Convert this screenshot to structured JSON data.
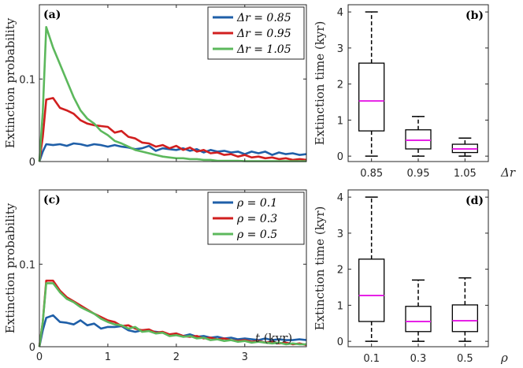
{
  "chart_data": [
    {
      "type": "line",
      "panel_label": "(a)",
      "xlabel": "",
      "ylabel": "Extinction probability",
      "xlim": [
        0,
        3.9
      ],
      "ylim": [
        0,
        0.19
      ],
      "xticks": [
        0,
        1,
        2,
        3
      ],
      "xtick_labels": [
        "",
        "",
        "",
        ""
      ],
      "yticks": [
        0,
        0.1
      ],
      "ytick_labels": [
        "0",
        "0.1"
      ],
      "legend_position": "top-right",
      "series": [
        {
          "name": "Δr = 0.85",
          "color": "#1f5fa8",
          "x": [
            0.05,
            0.1,
            0.2,
            0.3,
            0.4,
            0.5,
            0.6,
            0.7,
            0.8,
            0.9,
            1.0,
            1.1,
            1.2,
            1.3,
            1.4,
            1.5,
            1.6,
            1.7,
            1.8,
            1.9,
            2.0,
            2.1,
            2.2,
            2.3,
            2.4,
            2.5,
            2.6,
            2.7,
            2.8,
            2.9,
            3.0,
            3.1,
            3.2,
            3.3,
            3.4,
            3.5,
            3.6,
            3.7,
            3.8,
            3.9
          ],
          "y": [
            0.012,
            0.021,
            0.02,
            0.021,
            0.019,
            0.022,
            0.021,
            0.019,
            0.021,
            0.02,
            0.018,
            0.02,
            0.018,
            0.017,
            0.015,
            0.016,
            0.019,
            0.013,
            0.016,
            0.015,
            0.014,
            0.016,
            0.013,
            0.015,
            0.011,
            0.014,
            0.012,
            0.013,
            0.011,
            0.012,
            0.009,
            0.012,
            0.01,
            0.012,
            0.008,
            0.011,
            0.009,
            0.01,
            0.008,
            0.009
          ]
        },
        {
          "name": "Δr = 0.95",
          "color": "#d11f1f",
          "x": [
            0.05,
            0.1,
            0.2,
            0.3,
            0.4,
            0.5,
            0.6,
            0.7,
            0.8,
            0.9,
            1.0,
            1.1,
            1.2,
            1.3,
            1.4,
            1.5,
            1.6,
            1.7,
            1.8,
            1.9,
            2.0,
            2.1,
            2.2,
            2.3,
            2.4,
            2.5,
            2.6,
            2.7,
            2.8,
            2.9,
            3.0,
            3.1,
            3.2,
            3.3,
            3.4,
            3.5,
            3.6,
            3.7,
            3.8,
            3.9
          ],
          "y": [
            0.03,
            0.075,
            0.077,
            0.065,
            0.062,
            0.058,
            0.05,
            0.046,
            0.044,
            0.043,
            0.042,
            0.035,
            0.037,
            0.03,
            0.028,
            0.023,
            0.022,
            0.018,
            0.02,
            0.016,
            0.019,
            0.014,
            0.017,
            0.012,
            0.014,
            0.01,
            0.011,
            0.008,
            0.009,
            0.006,
            0.008,
            0.005,
            0.006,
            0.004,
            0.005,
            0.003,
            0.004,
            0.002,
            0.003,
            0.002
          ]
        },
        {
          "name": "Δr = 1.05",
          "color": "#5cb85c",
          "x": [
            0.05,
            0.1,
            0.2,
            0.3,
            0.4,
            0.5,
            0.6,
            0.7,
            0.8,
            0.9,
            1.0,
            1.1,
            1.2,
            1.3,
            1.4,
            1.5,
            1.6,
            1.7,
            1.8,
            1.9,
            2.0,
            2.1,
            2.2,
            2.3,
            2.4,
            2.5,
            2.6,
            2.7,
            2.8,
            2.9,
            3.0,
            3.1,
            3.2,
            3.3,
            3.4,
            3.5,
            3.6,
            3.7,
            3.8,
            3.9
          ],
          "y": [
            0.06,
            0.163,
            0.138,
            0.118,
            0.098,
            0.078,
            0.062,
            0.052,
            0.046,
            0.037,
            0.032,
            0.025,
            0.022,
            0.018,
            0.014,
            0.012,
            0.01,
            0.008,
            0.006,
            0.005,
            0.004,
            0.004,
            0.003,
            0.003,
            0.002,
            0.002,
            0.001,
            0.001,
            0.001,
            0.001,
            0.0005,
            0.0005,
            0.0005,
            0.0005,
            0.0005,
            0.0005,
            0.0005,
            0.0005,
            0.0005,
            0.0005
          ]
        }
      ]
    },
    {
      "type": "box",
      "panel_label": "(b)",
      "xlabel": "Δr",
      "ylabel": "Extinction time (kyr)",
      "ylim": [
        -0.15,
        4.2
      ],
      "yticks": [
        0,
        1,
        2,
        3,
        4
      ],
      "ytick_labels": [
        "0",
        "1",
        "2",
        "3",
        "4"
      ],
      "categories": [
        "0.85",
        "0.95",
        "1.05"
      ],
      "boxes": [
        {
          "whisker_low": 0.0,
          "q1": 0.7,
          "median": 1.53,
          "q3": 2.58,
          "whisker_high": 4.0
        },
        {
          "whisker_low": 0.0,
          "q1": 0.2,
          "median": 0.44,
          "q3": 0.73,
          "whisker_high": 1.1
        },
        {
          "whisker_low": 0.0,
          "q1": 0.1,
          "median": 0.2,
          "q3": 0.33,
          "whisker_high": 0.5
        }
      ],
      "median_color": "#e621e6"
    },
    {
      "type": "line",
      "panel_label": "(c)",
      "xlabel": "t (kyr)",
      "ylabel": "Extinction probability",
      "xlim": [
        0,
        3.9
      ],
      "ylim": [
        0,
        0.19
      ],
      "xticks": [
        0,
        1,
        2,
        3
      ],
      "xtick_labels": [
        "0",
        "1",
        "2",
        "3"
      ],
      "yticks": [
        0,
        0.1
      ],
      "ytick_labels": [
        "0",
        "0.1"
      ],
      "legend_position": "top-right",
      "series": [
        {
          "name": "ρ = 0.1",
          "color": "#1f5fa8",
          "x": [
            0.05,
            0.1,
            0.2,
            0.3,
            0.4,
            0.5,
            0.6,
            0.7,
            0.8,
            0.9,
            1.0,
            1.1,
            1.2,
            1.3,
            1.4,
            1.5,
            1.6,
            1.7,
            1.8,
            1.9,
            2.0,
            2.1,
            2.2,
            2.3,
            2.4,
            2.5,
            2.6,
            2.7,
            2.8,
            2.9,
            3.0,
            3.1,
            3.2,
            3.3,
            3.4,
            3.5,
            3.6,
            3.7,
            3.8,
            3.9
          ],
          "y": [
            0.02,
            0.035,
            0.038,
            0.03,
            0.029,
            0.027,
            0.032,
            0.026,
            0.028,
            0.022,
            0.024,
            0.024,
            0.025,
            0.02,
            0.018,
            0.02,
            0.019,
            0.018,
            0.017,
            0.014,
            0.016,
            0.013,
            0.015,
            0.012,
            0.013,
            0.011,
            0.012,
            0.01,
            0.011,
            0.009,
            0.01,
            0.009,
            0.008,
            0.01,
            0.008,
            0.009,
            0.008,
            0.008,
            0.009,
            0.008
          ]
        },
        {
          "name": "ρ = 0.3",
          "color": "#d11f1f",
          "x": [
            0.05,
            0.1,
            0.2,
            0.3,
            0.4,
            0.5,
            0.6,
            0.7,
            0.8,
            0.9,
            1.0,
            1.1,
            1.2,
            1.3,
            1.4,
            1.5,
            1.6,
            1.7,
            1.8,
            1.9,
            2.0,
            2.1,
            2.2,
            2.3,
            2.4,
            2.5,
            2.6,
            2.7,
            2.8,
            2.9,
            3.0,
            3.1,
            3.2,
            3.3,
            3.4,
            3.5,
            3.6,
            3.7,
            3.8,
            3.9
          ],
          "y": [
            0.03,
            0.08,
            0.08,
            0.068,
            0.06,
            0.055,
            0.05,
            0.045,
            0.04,
            0.036,
            0.032,
            0.03,
            0.025,
            0.026,
            0.022,
            0.02,
            0.021,
            0.017,
            0.018,
            0.015,
            0.016,
            0.013,
            0.012,
            0.013,
            0.01,
            0.011,
            0.009,
            0.01,
            0.008,
            0.007,
            0.008,
            0.006,
            0.007,
            0.005,
            0.006,
            0.004,
            0.005,
            0.003,
            0.004,
            0.002
          ]
        },
        {
          "name": "ρ = 0.5",
          "color": "#5cb85c",
          "x": [
            0.05,
            0.1,
            0.2,
            0.3,
            0.4,
            0.5,
            0.6,
            0.7,
            0.8,
            0.9,
            1.0,
            1.1,
            1.2,
            1.3,
            1.4,
            1.5,
            1.6,
            1.7,
            1.8,
            1.9,
            2.0,
            2.1,
            2.2,
            2.3,
            2.4,
            2.5,
            2.6,
            2.7,
            2.8,
            2.9,
            3.0,
            3.1,
            3.2,
            3.3,
            3.4,
            3.5,
            3.6,
            3.7,
            3.8,
            3.9
          ],
          "y": [
            0.03,
            0.077,
            0.077,
            0.066,
            0.058,
            0.054,
            0.048,
            0.044,
            0.04,
            0.034,
            0.03,
            0.027,
            0.026,
            0.022,
            0.024,
            0.018,
            0.019,
            0.016,
            0.017,
            0.013,
            0.014,
            0.012,
            0.013,
            0.01,
            0.011,
            0.008,
            0.009,
            0.007,
            0.008,
            0.006,
            0.007,
            0.005,
            0.006,
            0.005,
            0.004,
            0.005,
            0.003,
            0.004,
            0.003,
            0.003
          ]
        }
      ]
    },
    {
      "type": "box",
      "panel_label": "(d)",
      "xlabel": "ρ",
      "ylabel": "Extinction time (kyr)",
      "ylim": [
        -0.15,
        4.2
      ],
      "yticks": [
        0,
        1,
        2,
        3,
        4
      ],
      "ytick_labels": [
        "0",
        "1",
        "2",
        "3",
        "4"
      ],
      "categories": [
        "0.1",
        "0.3",
        "0.5"
      ],
      "boxes": [
        {
          "whisker_low": 0.0,
          "q1": 0.55,
          "median": 1.27,
          "q3": 2.28,
          "whisker_high": 4.0
        },
        {
          "whisker_low": 0.0,
          "q1": 0.27,
          "median": 0.55,
          "q3": 0.97,
          "whisker_high": 1.7
        },
        {
          "whisker_low": 0.0,
          "q1": 0.27,
          "median": 0.57,
          "q3": 1.01,
          "whisker_high": 1.76
        }
      ],
      "median_color": "#e621e6"
    }
  ]
}
